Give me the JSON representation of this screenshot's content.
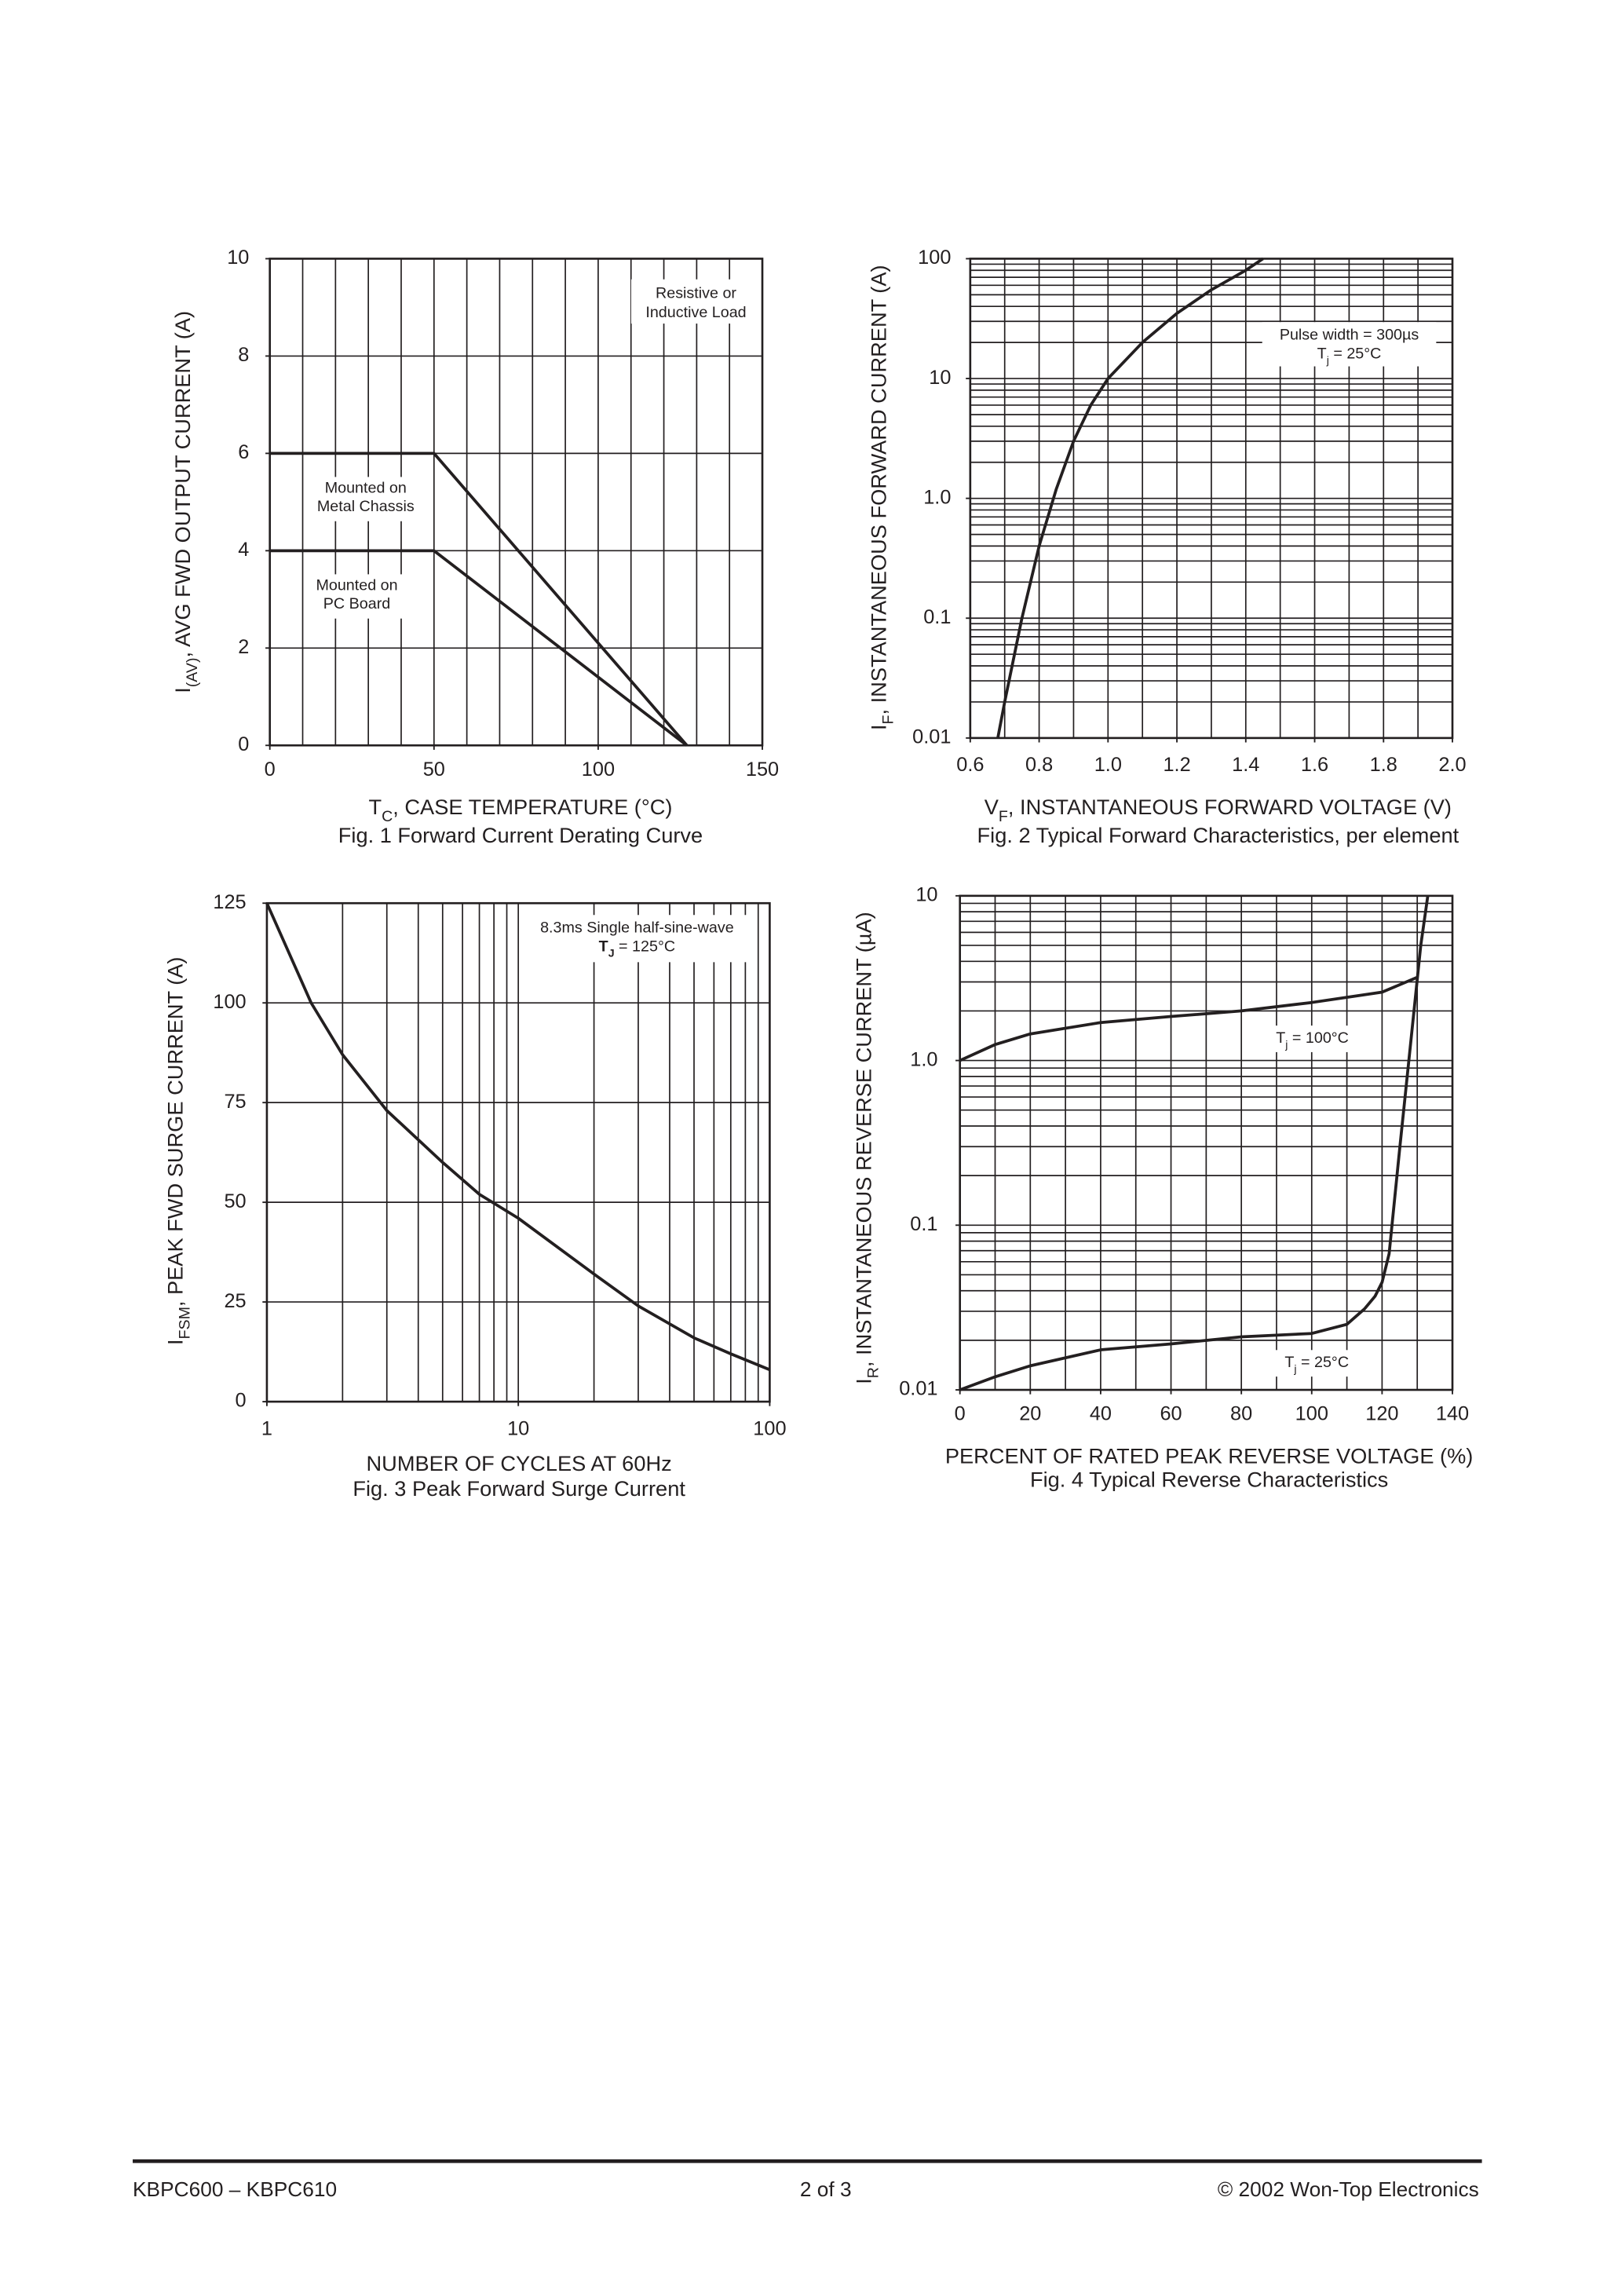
{
  "chart_data": [
    {
      "type": "line",
      "caption": "Fig. 1  Forward Current Derating Curve",
      "xlabel": [
        {
          "text": "T"
        },
        {
          "text": "C",
          "sub": true
        },
        {
          "text": ", CASE TEMPERATURE (°C)"
        }
      ],
      "ylabel": [
        {
          "text": "I"
        },
        {
          "text": "(AV)",
          "sub": true
        },
        {
          "text": ", AVG FWD OUTPUT CURRENT (A)"
        }
      ],
      "xlim": [
        0,
        150
      ],
      "ylim": [
        0,
        10
      ],
      "xticks": [
        0,
        50,
        100,
        150
      ],
      "yticks": [
        0,
        2,
        4,
        6,
        8,
        10
      ],
      "xgrid": [
        0,
        10,
        20,
        30,
        40,
        50,
        60,
        70,
        80,
        90,
        100,
        110,
        120,
        130,
        140,
        150
      ],
      "ygrid": [
        0,
        2,
        4,
        6,
        8,
        10
      ],
      "annotation": [
        "Resistive or",
        "Inductive Load"
      ],
      "series": [
        {
          "label": [
            "Mounted on",
            "Metal Chassis"
          ],
          "color": "#231f20",
          "x": [
            0,
            50,
            127
          ],
          "values": [
            6,
            6,
            0
          ]
        },
        {
          "label": [
            "Mounted on",
            "PC Board"
          ],
          "color": "#231f20",
          "x": [
            0,
            50,
            127
          ],
          "values": [
            4,
            4,
            0
          ]
        }
      ]
    },
    {
      "type": "line",
      "caption": "Fig. 2  Typical Forward Characteristics, per element",
      "xlabel": [
        {
          "text": "V"
        },
        {
          "text": "F",
          "sub": true
        },
        {
          "text": ", INSTANTANEOUS FORWARD VOLTAGE (V)"
        }
      ],
      "ylabel": [
        {
          "text": "I"
        },
        {
          "text": "F",
          "sub": true
        },
        {
          "text": ", INSTANTANEOUS FORWARD CURRENT (A)"
        }
      ],
      "xlim": [
        0.6,
        2.0
      ],
      "ylim": [
        0.01,
        100
      ],
      "ylog": true,
      "xticks": [
        0.6,
        0.8,
        {
          "value": 1,
          "label": "1.0"
        },
        1.2,
        1.4,
        1.6,
        1.8,
        {
          "value": 2,
          "label": "2.0"
        }
      ],
      "yticks": [
        100,
        10,
        {
          "value": 1,
          "label": "1.0"
        },
        0.1,
        0.01
      ],
      "xgrid": [
        0.6,
        0.7,
        0.8,
        0.9,
        1.0,
        1.1,
        1.2,
        1.3,
        1.4,
        1.5,
        1.6,
        1.7,
        1.8,
        1.9,
        2.0
      ],
      "ygrid": [
        0.01,
        0.02,
        0.03,
        0.04,
        0.05,
        0.06,
        0.07,
        0.08,
        0.09,
        0.1,
        0.2,
        0.3,
        0.4,
        0.5,
        0.6,
        0.7,
        0.8,
        0.9,
        1,
        2,
        3,
        4,
        5,
        6,
        7,
        8,
        9,
        10,
        20,
        30,
        40,
        50,
        60,
        70,
        80,
        90,
        100
      ],
      "annotation": [
        "Pulse width = 300µs",
        [
          {
            "text": "T"
          },
          {
            "text": "j",
            "sub": true
          },
          {
            "text": " = 25°C"
          }
        ]
      ],
      "series": [
        {
          "color": "#231f20",
          "x": [
            0.68,
            0.7,
            0.75,
            0.8,
            0.85,
            0.9,
            0.95,
            1.0,
            1.1,
            1.2,
            1.3,
            1.4,
            1.45
          ],
          "values": [
            0.01,
            0.02,
            0.1,
            0.4,
            1.2,
            3,
            6,
            10,
            20,
            35,
            55,
            80,
            100
          ]
        }
      ]
    },
    {
      "type": "line",
      "caption": "Fig. 3  Peak Forward Surge Current",
      "xlabel": "NUMBER OF CYCLES AT 60Hz",
      "ylabel": [
        {
          "text": "I"
        },
        {
          "text": "FSM",
          "sub": true
        },
        {
          "text": ", PEAK FWD SURGE CURRENT (A)"
        }
      ],
      "xlim": [
        1,
        100
      ],
      "ylim": [
        0,
        125
      ],
      "xlog": true,
      "xticks": [
        1,
        10,
        100
      ],
      "yticks": [
        0,
        25,
        50,
        75,
        100,
        125
      ],
      "xgrid": [
        1,
        2,
        3,
        4,
        5,
        6,
        7,
        8,
        9,
        10,
        20,
        30,
        40,
        50,
        60,
        70,
        80,
        90,
        100
      ],
      "ygrid": [
        0,
        25,
        50,
        75,
        100,
        125
      ],
      "annotation": [
        "8.3ms Single half-sine-wave",
        [
          {
            "text": "T",
            "bold": true
          },
          {
            "text": "J",
            "sub": true,
            "bold": true
          },
          {
            "text": " = 125°C"
          }
        ]
      ],
      "series": [
        {
          "color": "#231f20",
          "x": [
            1,
            1.5,
            2,
            3,
            5,
            7,
            10,
            20,
            30,
            50,
            70,
            100
          ],
          "values": [
            125,
            100,
            87,
            73,
            60,
            52,
            46,
            32,
            24,
            16,
            12,
            8
          ]
        }
      ]
    },
    {
      "type": "line",
      "caption": "Fig. 4  Typical Reverse Characteristics",
      "xlabel": "PERCENT OF RATED PEAK REVERSE VOLTAGE (%)",
      "ylabel": [
        {
          "text": "I"
        },
        {
          "text": "R",
          "sub": true
        },
        {
          "text": ", INSTANTANEOUS REVERSE CURRENT (µA)"
        }
      ],
      "xlim": [
        0,
        140
      ],
      "ylim": [
        0.01,
        10
      ],
      "ylog": true,
      "xticks": [
        0,
        20,
        40,
        60,
        80,
        100,
        120,
        140
      ],
      "yticks": [
        10,
        {
          "value": 1,
          "label": "1.0"
        },
        0.1,
        0.01
      ],
      "xgrid": [
        0,
        10,
        20,
        30,
        40,
        50,
        60,
        70,
        80,
        90,
        100,
        110,
        120,
        130,
        140
      ],
      "ygrid": [
        0.01,
        0.02,
        0.03,
        0.04,
        0.05,
        0.06,
        0.07,
        0.08,
        0.09,
        0.1,
        0.2,
        0.3,
        0.4,
        0.5,
        0.6,
        0.7,
        0.8,
        0.9,
        1,
        2,
        3,
        4,
        5,
        6,
        7,
        8,
        9,
        10
      ],
      "series": [
        {
          "label": [
            [
              {
                "text": "T"
              },
              {
                "text": "j",
                "sub": true
              },
              {
                "text": " = 100°C"
              }
            ]
          ],
          "color": "#231f20",
          "x": [
            0,
            10,
            20,
            40,
            60,
            80,
            100,
            120,
            130
          ],
          "values": [
            1.0,
            1.25,
            1.45,
            1.7,
            1.85,
            2.0,
            2.25,
            2.6,
            3.2
          ]
        },
        {
          "label": [
            [
              {
                "text": "T"
              },
              {
                "text": "j",
                "sub": true
              },
              {
                "text": " = 25°C"
              }
            ]
          ],
          "color": "#231f20",
          "x": [
            0,
            10,
            20,
            40,
            60,
            80,
            100,
            110,
            115,
            118,
            120,
            122,
            125,
            128,
            131,
            133
          ],
          "values": [
            0.01,
            0.012,
            0.014,
            0.0175,
            0.019,
            0.021,
            0.022,
            0.025,
            0.031,
            0.037,
            0.045,
            0.067,
            0.29,
            1.2,
            5,
            10
          ]
        }
      ]
    }
  ],
  "footer": {
    "left": "KBPC600 – KBPC610",
    "center": "2 of 3",
    "right": "© 2002 Won-Top Electronics"
  }
}
